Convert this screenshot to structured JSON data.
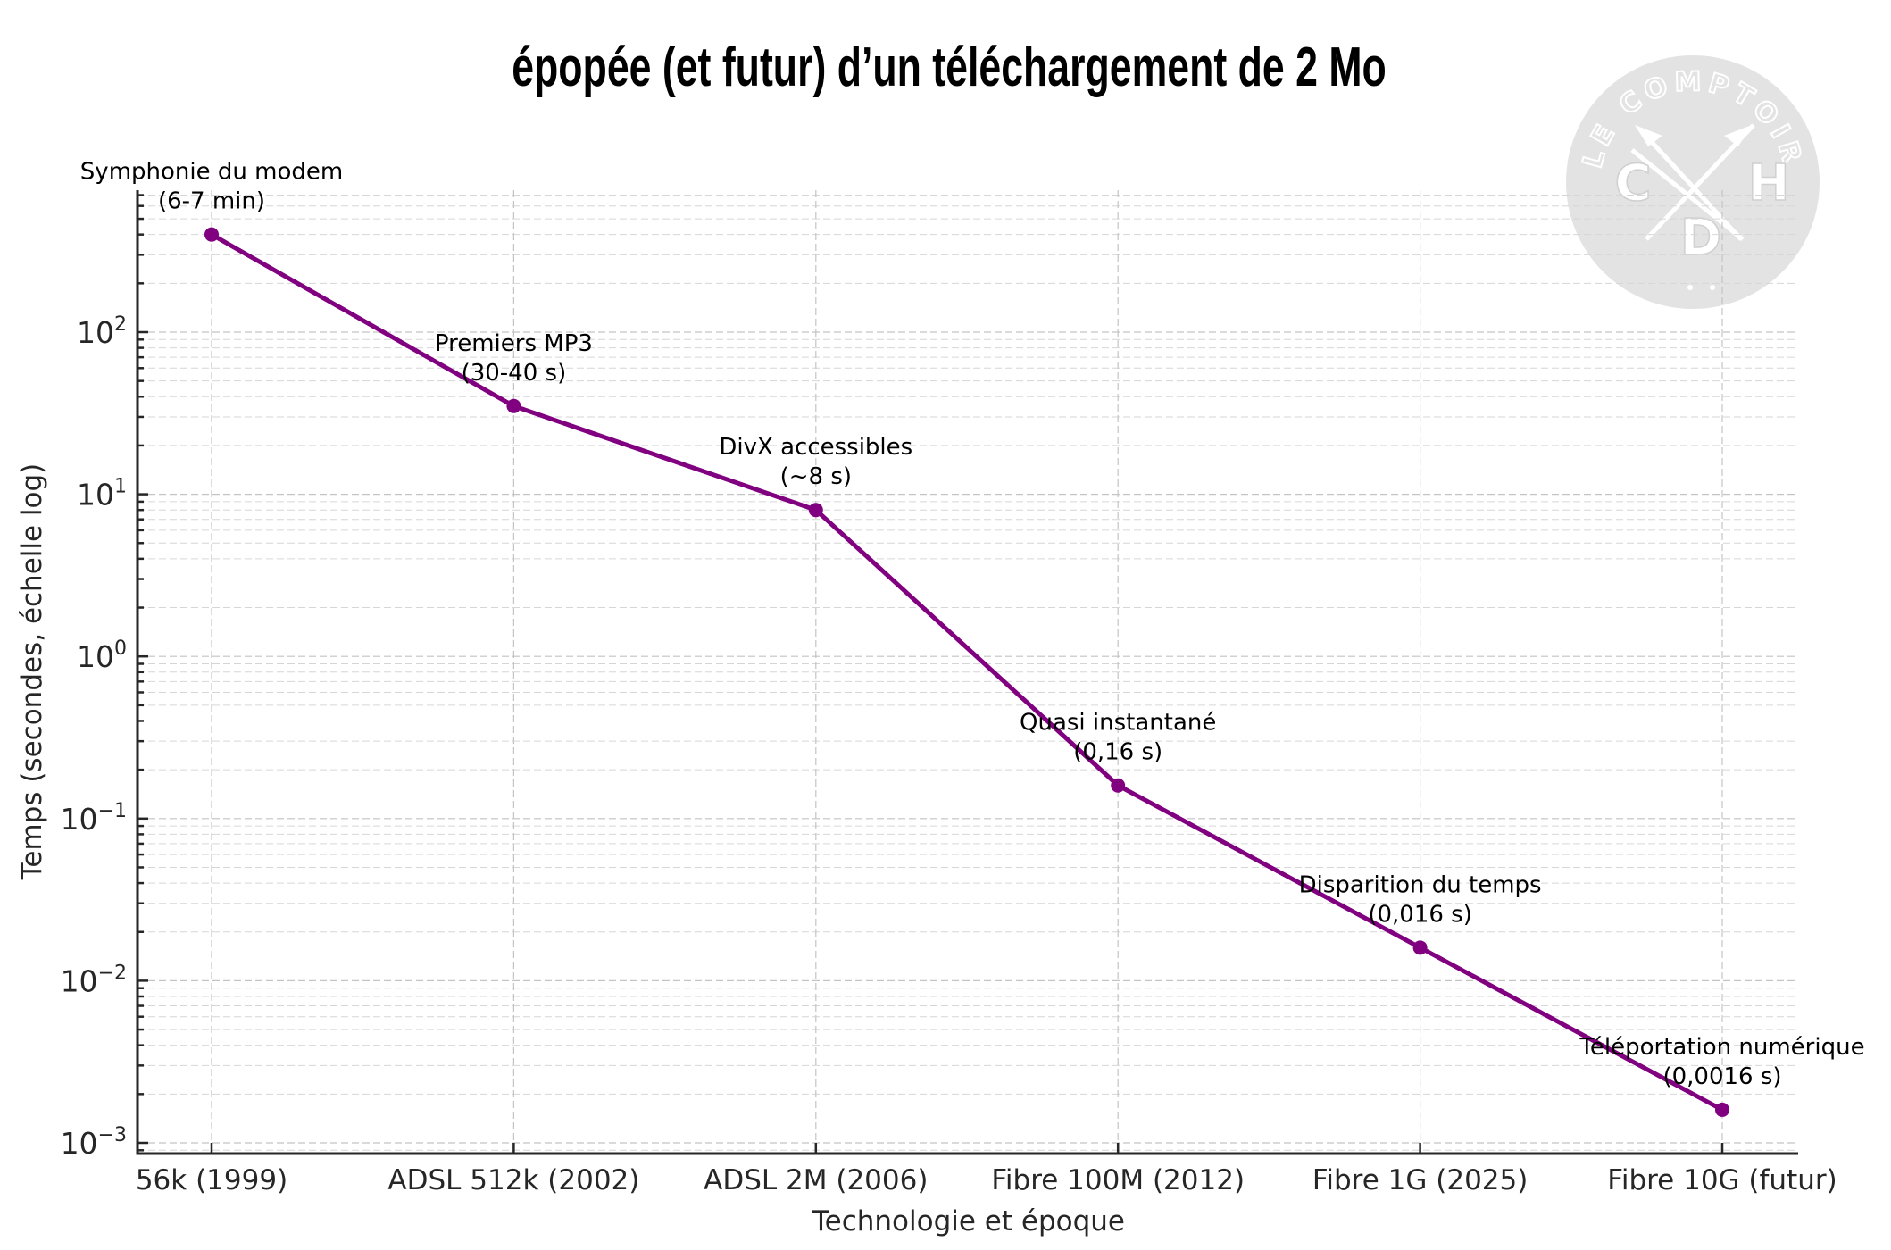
{
  "chart_data": {
    "type": "line",
    "title": "épopée (et futur) d’un téléchargement de 2 Mo",
    "xlabel": "Technologie et époque",
    "ylabel": "Temps (secondes, échelle log)",
    "yscale": "log",
    "ylim": [
      0.00086,
      750
    ],
    "grid": true,
    "categories": [
      "56k (1999)",
      "ADSL 512k (2002)",
      "ADSL 2M (2006)",
      "Fibre 100M (2012)",
      "Fibre 1G (2025)",
      "Fibre 10G (futur)"
    ],
    "series": [
      {
        "name": "Temps de téléchargement",
        "color": "#800080",
        "marker": "circle",
        "values": [
          400,
          35,
          8,
          0.16,
          0.016,
          0.0016
        ]
      }
    ],
    "yticks": [
      {
        "value": 100,
        "base": "10",
        "exp": "2"
      },
      {
        "value": 10,
        "base": "10",
        "exp": "1"
      },
      {
        "value": 1,
        "base": "10",
        "exp": "0"
      },
      {
        "value": 0.1,
        "base": "10",
        "exp": "−1"
      },
      {
        "value": 0.01,
        "base": "10",
        "exp": "−2"
      },
      {
        "value": 0.001,
        "base": "10",
        "exp": "−3"
      }
    ],
    "annotations": [
      {
        "line1": "Symphonie du modem",
        "line2": "(6-7 min)"
      },
      {
        "line1": "Premiers MP3",
        "line2": "(30-40 s)"
      },
      {
        "line1": "DivX accessibles",
        "line2": "(~8 s)"
      },
      {
        "line1": "Quasi instantané",
        "line2": "(0,16 s)"
      },
      {
        "line1": "Disparition du temps",
        "line2": "(0,016 s)"
      },
      {
        "line1": "Téléportation numérique",
        "line2": "(0,0016 s)"
      }
    ]
  },
  "logo": {
    "ring_text": "LE COMPTOIR",
    "letters": [
      "C",
      "H",
      "D"
    ],
    "fill": "#e3e3e3"
  }
}
